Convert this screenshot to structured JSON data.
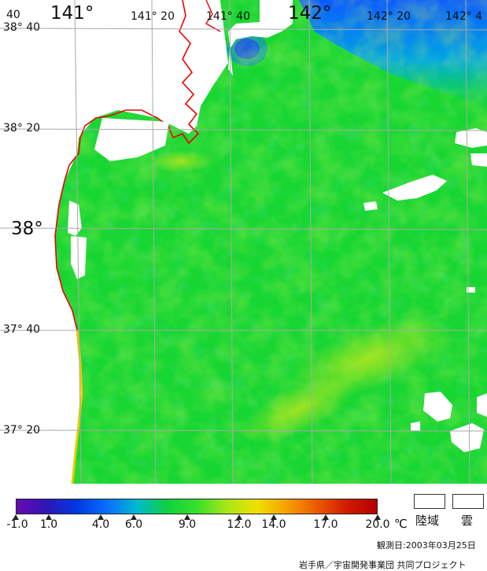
{
  "map": {
    "lon_labels": [
      "40",
      "141°",
      "141° 20",
      "141° 40",
      "142°",
      "142° 20",
      "142° 4"
    ],
    "lat_labels": [
      "38° 40",
      "38° 20",
      "38°",
      "37° 40",
      "37° 20"
    ]
  },
  "legend": {
    "ticks": [
      "-1.0",
      "1.0",
      "4.0",
      "6.0",
      "9.0",
      "12.0",
      "14.0",
      "17.0",
      "20.0"
    ],
    "unit": "℃",
    "land_label": "陸域",
    "cloud_label": "雲",
    "colors": [
      "#6a0ab0",
      "#2f16b6",
      "#0038e0",
      "#0a6eff",
      "#00b8d0",
      "#10d040",
      "#36e02a",
      "#a8e61a",
      "#f0e000",
      "#f6a000",
      "#ec5a00",
      "#d21a00",
      "#b40000"
    ]
  },
  "observation_date": "観測日:2003年03月25日",
  "credit": "岩手県／宇宙開発事業団 共同プロジェクト"
}
